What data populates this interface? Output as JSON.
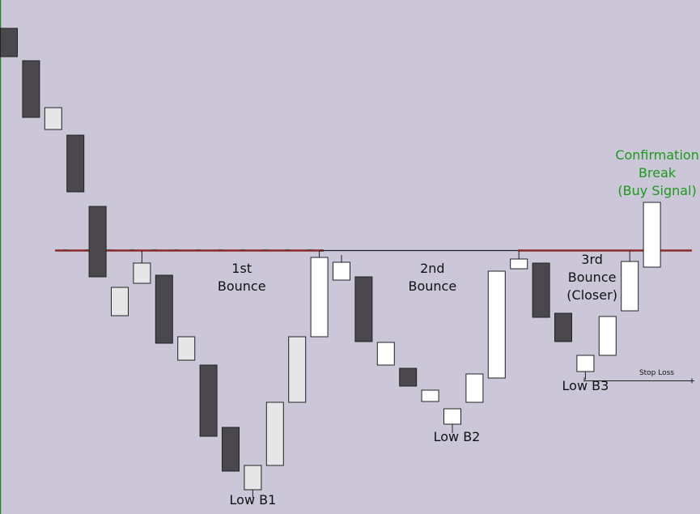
{
  "chart_data": {
    "type": "candlestick",
    "title": "",
    "xlabel": "",
    "ylabel": "",
    "ylim": [
      0,
      635
    ],
    "grid": false,
    "legend": "none",
    "colors": {
      "background": "#ccc6d9",
      "bearish": "#4a484d",
      "bullish_light": "#e6e6e6",
      "bullish_white": "#ffffff",
      "outline": "#222222",
      "resistance": "#8b2a2a",
      "neckline": "#222222",
      "confirmation_text": "#1a9a1a",
      "left_border": "#2e7d32"
    },
    "candles": [
      {
        "open": 600,
        "close": 565,
        "high": 600,
        "low": 565
      },
      {
        "open": 560,
        "close": 490,
        "high": 560,
        "low": 490
      },
      {
        "open": 475,
        "close": 502,
        "high": 502,
        "low": 475
      },
      {
        "open": 468,
        "close": 398,
        "high": 468,
        "low": 398
      },
      {
        "open": 380,
        "close": 293,
        "high": 380,
        "low": 293
      },
      {
        "open": 245,
        "close": 280,
        "high": 280,
        "low": 245
      },
      {
        "open": 285,
        "close": 310,
        "high": 325,
        "low": 285
      },
      {
        "open": 295,
        "close": 211,
        "high": 295,
        "low": 211
      },
      {
        "open": 190,
        "close": 219,
        "high": 219,
        "low": 190
      },
      {
        "open": 184,
        "close": 96,
        "high": 184,
        "low": 96
      },
      {
        "open": 107,
        "close": 53,
        "high": 107,
        "low": 53
      },
      {
        "open": 30,
        "close": 60,
        "high": 60,
        "low": 20
      },
      {
        "open": 60,
        "close": 138,
        "high": 138,
        "low": 60
      },
      {
        "open": 138,
        "close": 219,
        "high": 219,
        "low": 138
      },
      {
        "open": 219,
        "close": 317,
        "high": 325,
        "low": 219
      },
      {
        "open": 289,
        "close": 311,
        "high": 320,
        "low": 289
      },
      {
        "open": 293,
        "close": 213,
        "high": 293,
        "low": 213
      },
      {
        "open": 184,
        "close": 212,
        "high": 212,
        "low": 184
      },
      {
        "open": 180,
        "close": 158,
        "high": 180,
        "low": 158
      },
      {
        "open": 139,
        "close": 153,
        "high": 153,
        "low": 139
      },
      {
        "open": 111,
        "close": 130,
        "high": 130,
        "low": 100
      },
      {
        "open": 138,
        "close": 173,
        "high": 173,
        "low": 138
      },
      {
        "open": 168,
        "close": 300,
        "high": 300,
        "low": 168
      },
      {
        "open": 303,
        "close": 315,
        "high": 325,
        "low": 303
      },
      {
        "open": 310,
        "close": 243,
        "high": 310,
        "low": 243
      },
      {
        "open": 248,
        "close": 213,
        "high": 248,
        "low": 213
      },
      {
        "open": 176,
        "close": 196,
        "high": 196,
        "low": 166
      },
      {
        "open": 196,
        "close": 244,
        "high": 244,
        "low": 196
      },
      {
        "open": 251,
        "close": 312,
        "high": 325,
        "low": 251
      },
      {
        "open": 305,
        "close": 385,
        "high": 385,
        "low": 305
      }
    ],
    "resistance_level": 325,
    "stop_loss_level": 165,
    "annotations": [
      {
        "text": "1st",
        "candle": 10.5,
        "level": 298
      },
      {
        "text": "Bounce",
        "candle": 10.5,
        "level": 276
      },
      {
        "text": "2nd",
        "candle": 19.1,
        "level": 298
      },
      {
        "text": "Bounce",
        "candle": 19.1,
        "level": 276
      },
      {
        "text": "3rd",
        "candle": 26.3,
        "level": 309
      },
      {
        "text": "Bounce",
        "candle": 26.3,
        "level": 287
      },
      {
        "text": "(Closer)",
        "candle": 26.3,
        "level": 265
      },
      {
        "text": "Low B1",
        "candle": 11.0,
        "level": 12
      },
      {
        "text": "Low B2",
        "candle": 20.2,
        "level": 90
      },
      {
        "text": "Low B3",
        "candle": 26.0,
        "level": 153
      },
      {
        "text": "Stop Loss",
        "candle": 30.0,
        "level": 172,
        "small": true
      }
    ],
    "confirmation": {
      "lines": [
        "Confirmation",
        "Break",
        "(Buy Signal)"
      ],
      "candle": 29.2
    }
  }
}
